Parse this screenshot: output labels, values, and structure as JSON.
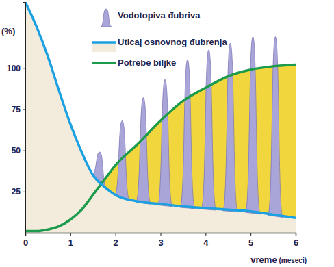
{
  "chart_data": {
    "type": "line",
    "ylabel": "(%)",
    "xlabel": "vreme (meseci)",
    "xlim": [
      0,
      6
    ],
    "xticks": [
      0,
      1,
      2,
      3,
      4,
      5,
      6
    ],
    "ylim": [
      0,
      140
    ],
    "yticks": [
      25,
      50,
      75,
      100
    ],
    "legend": "top",
    "series": [
      {
        "name": "Vodotopiva đubriva",
        "type": "spike",
        "color": "#a9a5d9",
        "x": [
          1.65,
          2.15,
          2.62,
          3.1,
          3.6,
          4.07,
          4.55,
          5.05,
          5.55
        ],
        "values": [
          49,
          68,
          82,
          93,
          105,
          111,
          115,
          119,
          119
        ]
      },
      {
        "name": "Uticaj osnovnog đubrenja",
        "type": "area",
        "color": "#1ba0e2",
        "x": [
          0,
          0.25,
          0.5,
          0.75,
          1,
          1.25,
          1.5,
          1.75,
          2,
          2.5,
          3,
          3.5,
          4,
          4.5,
          5,
          5.5,
          6
        ],
        "values": [
          140,
          125,
          107,
          86,
          66,
          49,
          35,
          28,
          23,
          19,
          17.5,
          16,
          15,
          14,
          13,
          11,
          9
        ]
      },
      {
        "name": "Potrebe biljke",
        "type": "line",
        "color": "#1b9b4b",
        "x": [
          0,
          0.25,
          0.5,
          0.75,
          1,
          1.25,
          1.5,
          1.75,
          2,
          2.5,
          3,
          3.5,
          4,
          4.5,
          5,
          5.5,
          6
        ],
        "values": [
          1,
          1,
          2,
          4,
          8,
          14,
          23,
          32,
          41,
          54,
          68,
          80,
          88,
          95,
          99,
          101,
          102
        ]
      }
    ]
  }
}
